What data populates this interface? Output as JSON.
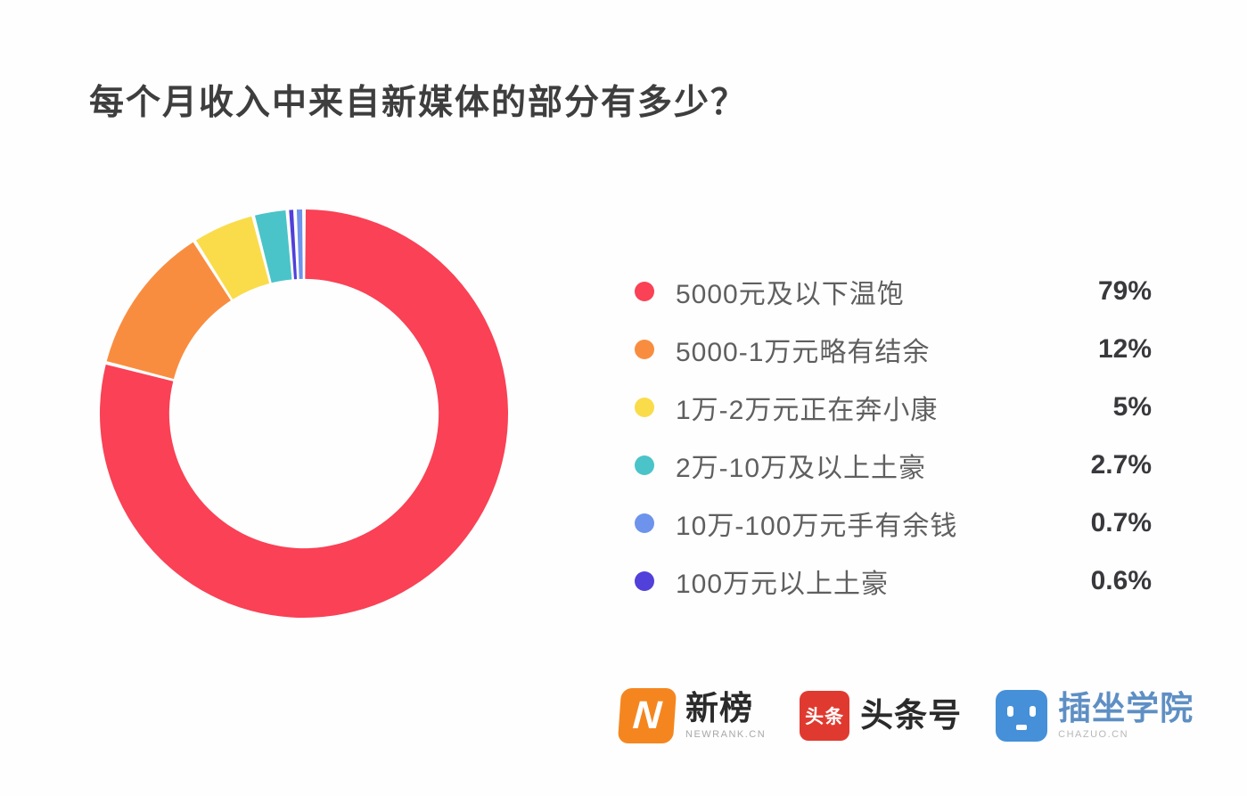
{
  "title": "每个月收入中来自新媒体的部分有多少？",
  "chart_data": {
    "type": "pie",
    "subtype": "donut",
    "title": "每个月收入中来自新媒体的部分有多少？",
    "categories": [
      "5000元及以下温饱",
      "5000-1万元略有结余",
      "1万-2万元正在奔小康",
      "2万-10万及以上土豪",
      "10万-100万元手有余钱",
      "100万元以上土豪"
    ],
    "values": [
      79,
      12,
      5,
      2.7,
      0.7,
      0.6
    ],
    "value_labels": [
      "79%",
      "12%",
      "5%",
      "2.7%",
      "0.7%",
      "0.6%"
    ],
    "colors": [
      "#FA4155",
      "#F98D3F",
      "#FADC4B",
      "#4AC4C9",
      "#6E93EC",
      "#5140D9"
    ],
    "start_angle": "top",
    "direction": "clockwise",
    "slice_draw_order": [
      0,
      1,
      2,
      3,
      5,
      4
    ],
    "inner_radius_ratio": 0.66,
    "slice_gap_deg": 1.0,
    "legend_position": "right",
    "background": "#FEFEFE"
  },
  "footer": {
    "brands": [
      {
        "name": "新榜",
        "subtext": "NEWRANK.CN",
        "badge_glyph": "N",
        "badge_color": "#F5861F",
        "text_color": "#2B2B2B",
        "subtext_color": "#A8A8A8"
      },
      {
        "name": "头条号",
        "subtext": "",
        "badge_glyph": "头条",
        "badge_color": "#E03A30",
        "text_color": "#2B2B2B",
        "subtext_color": "#A8A8A8"
      },
      {
        "name": "插坐学院",
        "subtext": "CHAZUO.CN",
        "badge_glyph": "",
        "badge_color": "#4590D8",
        "text_color": "#5E8FC4",
        "subtext_color": "#B8B8B8"
      }
    ]
  }
}
